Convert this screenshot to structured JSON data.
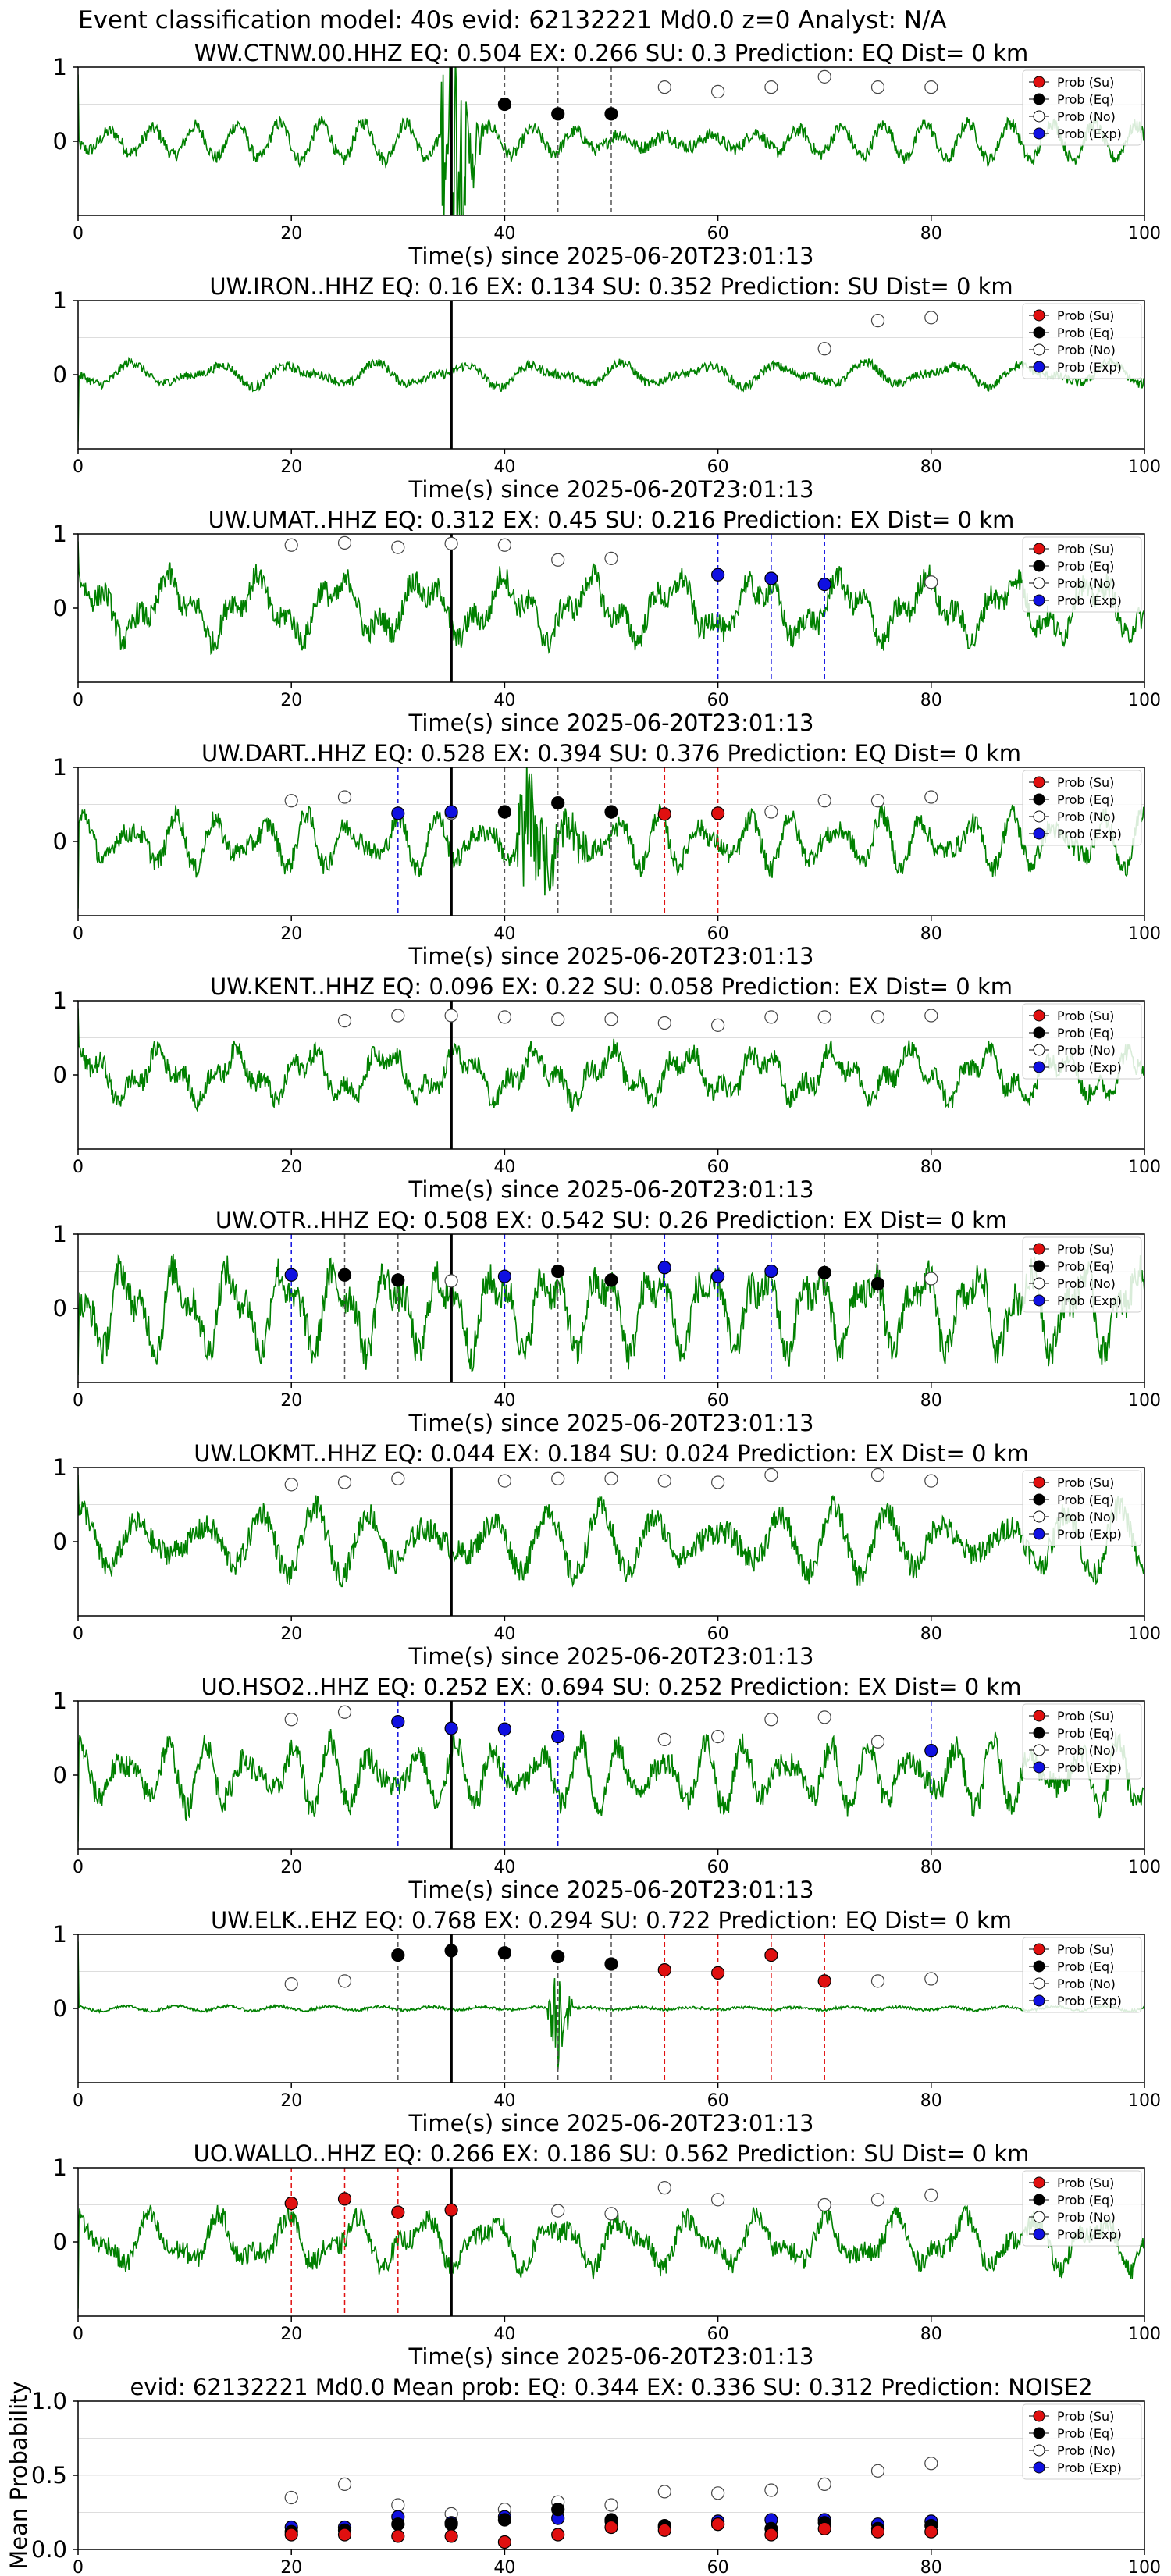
{
  "figure": {
    "suptitle": "Event classification model: 40s evid: 62132221 Md0.0 z=0 Analyst: N/A"
  },
  "legend": {
    "entries": [
      {
        "label": "Prob (Su)",
        "marker": "red-filled-circle"
      },
      {
        "label": "Prob (Eq)",
        "marker": "black-filled-circle"
      },
      {
        "label": "Prob (No)",
        "marker": "white-hollow-circle"
      },
      {
        "label": "Prob (Exp)",
        "marker": "blue-filled-circle"
      }
    ],
    "placement": "top-right"
  },
  "colors": {
    "trace": "#008000",
    "su": "#e01010",
    "eq": "#000000",
    "no": "#ffffff",
    "exp": "#1010e0",
    "grid": "#dddddd"
  },
  "chart_data": [
    {
      "type": "line",
      "title": "WW.CTNW.00.HHZ   EQ: 0.504  EX: 0.266  SU: 0.3   Prediction: EQ    Dist= 0 km",
      "xlabel": "Time(s) since 2025-06-20T23:01:13",
      "ylabel": "",
      "xlim": [
        0,
        100
      ],
      "ylim": [
        -1,
        1
      ],
      "xticks": [
        0,
        20,
        40,
        60,
        80,
        100
      ],
      "yticks": [
        0,
        1
      ],
      "onset": 35,
      "trace_amplitude": 0.3,
      "burst": {
        "t": 35,
        "amp": 2.0,
        "dur": 3
      },
      "su": [],
      "eq": [
        [
          40,
          0.5
        ],
        [
          45,
          0.37
        ],
        [
          50,
          0.37
        ]
      ],
      "no": [
        [
          55,
          0.73
        ],
        [
          60,
          0.67
        ],
        [
          65,
          0.73
        ],
        [
          70,
          0.87
        ],
        [
          75,
          0.73
        ],
        [
          80,
          0.73
        ]
      ],
      "exp": []
    },
    {
      "type": "line",
      "title": "UW.IRON..HHZ   EQ: 0.16  EX: 0.134  SU: 0.352   Prediction: SU    Dist= 0 km",
      "xlabel": "Time(s) since 2025-06-20T23:01:13",
      "ylabel": "",
      "xlim": [
        0,
        100
      ],
      "ylim": [
        -1,
        1
      ],
      "xticks": [
        0,
        20,
        40,
        60,
        80,
        100
      ],
      "yticks": [
        0,
        1
      ],
      "onset": 35,
      "trace_amplitude": 0.2,
      "burst": null,
      "su": [],
      "eq": [],
      "no": [
        [
          70,
          0.35
        ],
        [
          75,
          0.73
        ],
        [
          80,
          0.77
        ]
      ],
      "exp": []
    },
    {
      "type": "line",
      "title": "UW.UMAT..HHZ   EQ: 0.312  EX: 0.45  SU: 0.216   Prediction: EX    Dist= 0 km",
      "xlabel": "Time(s) since 2025-06-20T23:01:13",
      "ylabel": "",
      "xlim": [
        0,
        100
      ],
      "ylim": [
        -1,
        1
      ],
      "xticks": [
        0,
        20,
        40,
        60,
        80,
        100
      ],
      "yticks": [
        0,
        1
      ],
      "onset": 35,
      "trace_amplitude": 0.55,
      "burst": null,
      "su": [],
      "eq": [],
      "no": [
        [
          20,
          0.85
        ],
        [
          25,
          0.88
        ],
        [
          30,
          0.82
        ],
        [
          35,
          0.87
        ],
        [
          40,
          0.85
        ],
        [
          45,
          0.65
        ],
        [
          50,
          0.67
        ],
        [
          80,
          0.35
        ]
      ],
      "exp": [
        [
          60,
          0.45
        ],
        [
          65,
          0.4
        ],
        [
          70,
          0.32
        ]
      ]
    },
    {
      "type": "line",
      "title": "UW.DART..HHZ   EQ: 0.528  EX: 0.394  SU: 0.376   Prediction: EQ    Dist= 0 km",
      "xlabel": "Time(s) since 2025-06-20T23:01:13",
      "ylabel": "",
      "xlim": [
        0,
        100
      ],
      "ylim": [
        -1,
        1
      ],
      "xticks": [
        0,
        20,
        40,
        60,
        80,
        100
      ],
      "yticks": [
        0,
        1
      ],
      "onset": 35,
      "trace_amplitude": 0.45,
      "burst": {
        "t": 42,
        "amp": 0.9,
        "dur": 6
      },
      "su": [
        [
          55,
          0.37
        ],
        [
          60,
          0.38
        ]
      ],
      "eq": [
        [
          40,
          0.4
        ],
        [
          45,
          0.52
        ],
        [
          50,
          0.4
        ]
      ],
      "no": [
        [
          20,
          0.55
        ],
        [
          25,
          0.6
        ],
        [
          35,
          0.38
        ],
        [
          65,
          0.4
        ],
        [
          70,
          0.55
        ],
        [
          75,
          0.55
        ],
        [
          80,
          0.6
        ]
      ],
      "exp": [
        [
          30,
          0.38
        ],
        [
          35,
          0.4
        ]
      ]
    },
    {
      "type": "line",
      "title": "UW.KENT..HHZ   EQ: 0.096  EX: 0.22  SU: 0.058   Prediction: EX    Dist= 0 km",
      "xlabel": "Time(s) since 2025-06-20T23:01:13",
      "ylabel": "",
      "xlim": [
        0,
        100
      ],
      "ylim": [
        -1,
        1
      ],
      "xticks": [
        0,
        20,
        40,
        60,
        80,
        100
      ],
      "yticks": [
        0,
        1
      ],
      "onset": 35,
      "trace_amplitude": 0.45,
      "burst": null,
      "su": [],
      "eq": [],
      "no": [
        [
          25,
          0.73
        ],
        [
          30,
          0.8
        ],
        [
          35,
          0.8
        ],
        [
          40,
          0.78
        ],
        [
          45,
          0.75
        ],
        [
          50,
          0.75
        ],
        [
          55,
          0.7
        ],
        [
          60,
          0.67
        ],
        [
          65,
          0.78
        ],
        [
          70,
          0.78
        ],
        [
          75,
          0.78
        ],
        [
          80,
          0.8
        ]
      ],
      "exp": []
    },
    {
      "type": "line",
      "title": "UW.OTR..HHZ   EQ: 0.508  EX: 0.542  SU: 0.26   Prediction: EX    Dist= 0 km",
      "xlabel": "Time(s) since 2025-06-20T23:01:13",
      "ylabel": "",
      "xlim": [
        0,
        100
      ],
      "ylim": [
        -1,
        1
      ],
      "xticks": [
        0,
        20,
        40,
        60,
        80,
        100
      ],
      "yticks": [
        0,
        1
      ],
      "onset": 35,
      "trace_amplitude": 0.75,
      "burst": null,
      "su": [],
      "eq": [
        [
          25,
          0.45
        ],
        [
          30,
          0.38
        ],
        [
          45,
          0.5
        ],
        [
          50,
          0.38
        ],
        [
          70,
          0.48
        ],
        [
          75,
          0.33
        ]
      ],
      "no": [
        [
          35,
          0.37
        ],
        [
          80,
          0.4
        ]
      ],
      "exp": [
        [
          20,
          0.45
        ],
        [
          40,
          0.43
        ],
        [
          55,
          0.55
        ],
        [
          60,
          0.43
        ],
        [
          65,
          0.5
        ]
      ]
    },
    {
      "type": "line",
      "title": "UW.LOKMT..HHZ   EQ: 0.044  EX: 0.184  SU: 0.024   Prediction: EX    Dist= 0 km",
      "xlabel": "Time(s) since 2025-06-20T23:01:13",
      "ylabel": "",
      "xlim": [
        0,
        100
      ],
      "ylim": [
        -1,
        1
      ],
      "xticks": [
        0,
        20,
        40,
        60,
        80,
        100
      ],
      "yticks": [
        0,
        1
      ],
      "onset": 35,
      "trace_amplitude": 0.55,
      "burst": null,
      "su": [],
      "eq": [],
      "no": [
        [
          20,
          0.77
        ],
        [
          25,
          0.8
        ],
        [
          30,
          0.85
        ],
        [
          40,
          0.82
        ],
        [
          45,
          0.85
        ],
        [
          50,
          0.85
        ],
        [
          55,
          0.82
        ],
        [
          60,
          0.8
        ],
        [
          65,
          0.9
        ],
        [
          75,
          0.9
        ],
        [
          80,
          0.82
        ]
      ],
      "exp": []
    },
    {
      "type": "line",
      "title": "UO.HSO2..HHZ   EQ: 0.252  EX: 0.694  SU: 0.252   Prediction: EX    Dist= 0 km",
      "xlabel": "Time(s) since 2025-06-20T23:01:13",
      "ylabel": "",
      "xlim": [
        0,
        100
      ],
      "ylim": [
        -1,
        1
      ],
      "xticks": [
        0,
        20,
        40,
        60,
        80,
        100
      ],
      "yticks": [
        0,
        1
      ],
      "onset": 35,
      "trace_amplitude": 0.55,
      "burst": null,
      "su": [],
      "eq": [],
      "no": [
        [
          20,
          0.75
        ],
        [
          25,
          0.85
        ],
        [
          55,
          0.48
        ],
        [
          60,
          0.52
        ],
        [
          65,
          0.75
        ],
        [
          70,
          0.78
        ],
        [
          75,
          0.45
        ]
      ],
      "exp": [
        [
          30,
          0.72
        ],
        [
          35,
          0.63
        ],
        [
          40,
          0.62
        ],
        [
          45,
          0.52
        ],
        [
          80,
          0.33
        ]
      ]
    },
    {
      "type": "line",
      "title": "UW.ELK..EHZ   EQ: 0.768  EX: 0.294  SU: 0.722   Prediction: EQ    Dist= 0 km",
      "xlabel": "Time(s) since 2025-06-20T23:01:13",
      "ylabel": "",
      "xlim": [
        0,
        100
      ],
      "ylim": [
        -1,
        1
      ],
      "xticks": [
        0,
        20,
        40,
        60,
        80,
        100
      ],
      "yticks": [
        0,
        1
      ],
      "onset": 35,
      "trace_amplitude": 0.06,
      "burst": {
        "t": 45,
        "amp": 0.9,
        "dur": 1.5
      },
      "su": [
        [
          55,
          0.52
        ],
        [
          60,
          0.48
        ],
        [
          65,
          0.72
        ],
        [
          70,
          0.37
        ]
      ],
      "eq": [
        [
          30,
          0.72
        ],
        [
          35,
          0.78
        ],
        [
          40,
          0.75
        ],
        [
          45,
          0.7
        ],
        [
          50,
          0.6
        ]
      ],
      "no": [
        [
          20,
          0.33
        ],
        [
          25,
          0.37
        ],
        [
          75,
          0.37
        ],
        [
          80,
          0.4
        ]
      ],
      "exp": []
    },
    {
      "type": "line",
      "title": "UO.WALLO..HHZ   EQ: 0.266  EX: 0.186  SU: 0.562   Prediction: SU    Dist= 0 km",
      "xlabel": "Time(s) since 2025-06-20T23:01:13",
      "ylabel": "",
      "xlim": [
        0,
        100
      ],
      "ylim": [
        -1,
        1
      ],
      "xticks": [
        0,
        20,
        40,
        60,
        80,
        100
      ],
      "yticks": [
        0,
        1
      ],
      "onset": 35,
      "trace_amplitude": 0.45,
      "burst": null,
      "su": [
        [
          20,
          0.52
        ],
        [
          25,
          0.58
        ],
        [
          30,
          0.4
        ],
        [
          35,
          0.43
        ]
      ],
      "eq": [],
      "no": [
        [
          45,
          0.42
        ],
        [
          50,
          0.38
        ],
        [
          55,
          0.73
        ],
        [
          60,
          0.57
        ],
        [
          70,
          0.5
        ],
        [
          75,
          0.57
        ],
        [
          80,
          0.63
        ]
      ],
      "exp": []
    },
    {
      "type": "scatter",
      "title": "evid: 62132221  Md0.0   Mean prob:   EQ: 0.344  EX: 0.336  SU: 0.312   Prediction: NOISE2",
      "xlabel": "",
      "ylabel": "Mean Probability",
      "xlim": [
        0,
        100
      ],
      "ylim": [
        0,
        1
      ],
      "xticks": [
        0,
        20,
        40,
        60,
        80,
        100
      ],
      "yticks": [
        0.0,
        0.5,
        1.0
      ],
      "ytick_labels": [
        "0.0",
        "0.5",
        "1.0"
      ],
      "onset": null,
      "su": [
        [
          20,
          0.1
        ],
        [
          25,
          0.1
        ],
        [
          30,
          0.09
        ],
        [
          35,
          0.09
        ],
        [
          40,
          0.05
        ],
        [
          45,
          0.1
        ],
        [
          50,
          0.15
        ],
        [
          55,
          0.13
        ],
        [
          60,
          0.17
        ],
        [
          65,
          0.1
        ],
        [
          70,
          0.14
        ],
        [
          75,
          0.12
        ],
        [
          80,
          0.12
        ]
      ],
      "eq": [
        [
          20,
          0.12
        ],
        [
          25,
          0.13
        ],
        [
          30,
          0.17
        ],
        [
          35,
          0.17
        ],
        [
          40,
          0.2
        ],
        [
          45,
          0.27
        ],
        [
          50,
          0.2
        ],
        [
          55,
          0.16
        ],
        [
          60,
          0.17
        ],
        [
          65,
          0.14
        ],
        [
          70,
          0.18
        ],
        [
          75,
          0.14
        ],
        [
          80,
          0.16
        ]
      ],
      "no": [
        [
          20,
          0.35
        ],
        [
          25,
          0.44
        ],
        [
          30,
          0.3
        ],
        [
          35,
          0.24
        ],
        [
          40,
          0.27
        ],
        [
          45,
          0.32
        ],
        [
          50,
          0.3
        ],
        [
          55,
          0.39
        ],
        [
          60,
          0.38
        ],
        [
          65,
          0.4
        ],
        [
          70,
          0.44
        ],
        [
          75,
          0.53
        ],
        [
          80,
          0.58
        ]
      ],
      "exp": [
        [
          20,
          0.15
        ],
        [
          25,
          0.15
        ],
        [
          30,
          0.22
        ],
        [
          35,
          0.18
        ],
        [
          40,
          0.22
        ],
        [
          45,
          0.21
        ],
        [
          50,
          0.19
        ],
        [
          55,
          0.15
        ],
        [
          60,
          0.19
        ],
        [
          65,
          0.2
        ],
        [
          70,
          0.2
        ],
        [
          75,
          0.17
        ],
        [
          80,
          0.19
        ]
      ]
    }
  ]
}
